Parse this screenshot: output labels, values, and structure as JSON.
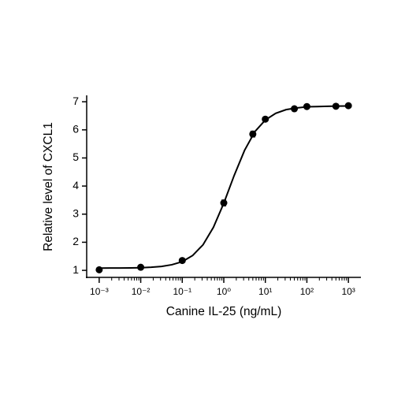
{
  "chart_data": {
    "type": "scatter",
    "xlabel": "Canine IL-25 (ng/mL)",
    "ylabel": "Relative level of CXCL1",
    "xscale": "log",
    "color": "#000000",
    "x": [
      0.001,
      0.01,
      0.1,
      1,
      5,
      10,
      50,
      100,
      500,
      1000
    ],
    "values": [
      1.02,
      1.11,
      1.35,
      3.4,
      5.85,
      6.38,
      6.75,
      6.83,
      6.84,
      6.86
    ],
    "errors": [
      0.03,
      0.03,
      0.04,
      0.1,
      0.1,
      0.05,
      0.05,
      0.04,
      0.04,
      0.04
    ],
    "fit": {
      "x": [
        0.001,
        0.00178,
        0.00316,
        0.00562,
        0.01,
        0.0178,
        0.0316,
        0.0562,
        0.1,
        0.178,
        0.316,
        0.562,
        1,
        1.78,
        3.16,
        5.62,
        10,
        17.8,
        31.6,
        56.2,
        100,
        178,
        316,
        562,
        1000
      ],
      "values": [
        1.081,
        1.082,
        1.084,
        1.088,
        1.095,
        1.11,
        1.14,
        1.2,
        1.31,
        1.53,
        1.91,
        2.53,
        3.39,
        4.38,
        5.27,
        5.94,
        6.35,
        6.59,
        6.72,
        6.78,
        6.82,
        6.83,
        6.84,
        6.845,
        6.85
      ]
    },
    "xlim": [
      0.0005,
      2000
    ],
    "ylim": [
      0.75,
      7.2
    ],
    "xticks": [
      {
        "value": 0.001,
        "label": "10⁻³"
      },
      {
        "value": 0.01,
        "label": "10⁻²"
      },
      {
        "value": 0.1,
        "label": "10⁻¹"
      },
      {
        "value": 1,
        "label": "10⁰"
      },
      {
        "value": 10,
        "label": "10¹"
      },
      {
        "value": 100,
        "label": "10²"
      },
      {
        "value": 1000,
        "label": "10³"
      }
    ],
    "xminorticks": [
      0.002,
      0.003,
      0.004,
      0.005,
      0.006,
      0.007,
      0.008,
      0.009,
      0.02,
      0.03,
      0.04,
      0.05,
      0.06,
      0.07,
      0.08,
      0.09,
      0.2,
      0.3,
      0.4,
      0.5,
      0.6,
      0.7,
      0.8,
      0.9,
      2,
      3,
      4,
      5,
      6,
      7,
      8,
      9,
      20,
      30,
      40,
      50,
      60,
      70,
      80,
      90,
      200,
      300,
      400,
      500,
      600,
      700,
      800,
      900
    ],
    "yticks": [
      1,
      2,
      3,
      4,
      5,
      6,
      7
    ]
  }
}
